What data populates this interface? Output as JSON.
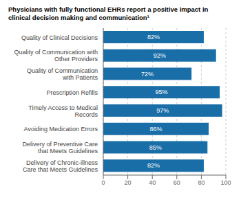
{
  "chart_data": {
    "type": "bar",
    "title": "Physicians with fully functional EHRs report a positive impact in\nclinical decision making and communication¹",
    "categories": [
      "Quality of Clinical Decisions",
      "Quality of Communication with\nOther Providers",
      "Quality of Communication\nwith Patients",
      "Prescription Refills",
      "Timely Access to Medical\nRecords",
      "Avoiding Medication Errors",
      "Delivery of Preventive Care\nthat Meets Guidelines",
      "Delivery of Chronic-illness\nCare that Meets Guidelines"
    ],
    "values": [
      82,
      92,
      72,
      95,
      97,
      86,
      85,
      82
    ],
    "value_labels": [
      "82%",
      "92%",
      "72%",
      "95%",
      "97%",
      "86%",
      "85%",
      "82%"
    ],
    "color": "#1a6ea8",
    "orientation": "horizontal",
    "data_labels": true,
    "xlim": [
      0,
      100
    ],
    "xticks": [
      0,
      20,
      40,
      60,
      80,
      100
    ],
    "grid": true
  }
}
